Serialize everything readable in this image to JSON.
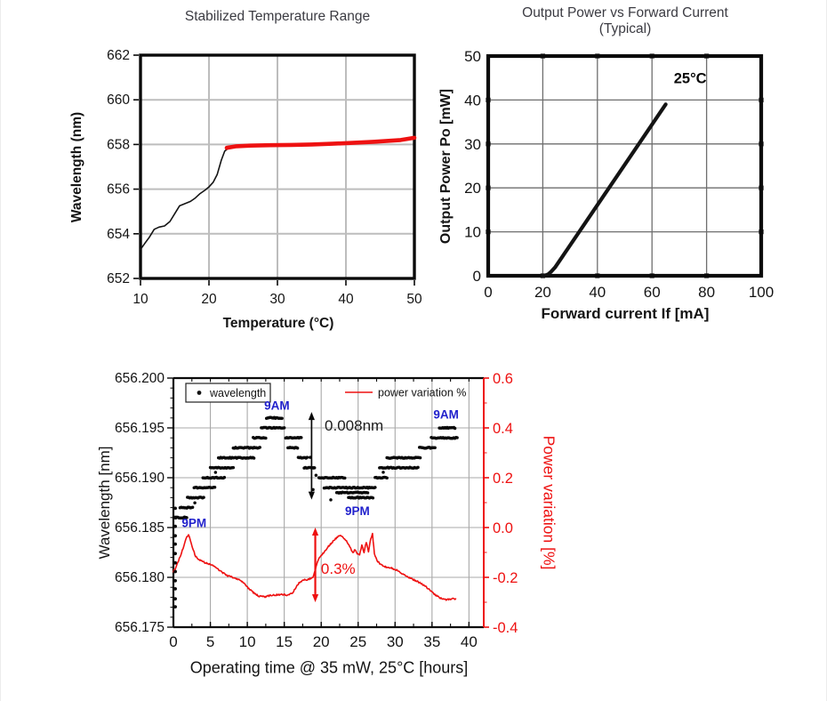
{
  "colors": {
    "red": "#ee1111",
    "blue": "#2222cc",
    "black": "#141414",
    "title_gray": "#3b3b42",
    "grid_light": "#bdbdbd",
    "grid_mid": "#6e6e6e",
    "grid_fine": "#a9a9a9"
  },
  "chart_data": [
    {
      "type": "line",
      "title": "Stabilized Temperature Range",
      "xlabel": "Temperature (°C)",
      "ylabel": "Wavelength (nm)",
      "xlim": [
        10,
        50
      ],
      "ylim": [
        652,
        662
      ],
      "xticks": {
        "values": [
          10,
          20,
          30,
          40,
          50
        ],
        "labels": [
          "10",
          "20",
          "30",
          "40",
          "50"
        ]
      },
      "yticks": {
        "values": [
          652,
          654,
          656,
          658,
          660,
          662
        ],
        "labels": [
          "652",
          "654",
          "656",
          "658",
          "660",
          "662"
        ]
      },
      "series": [
        {
          "name": "unstabilized-wavelength",
          "color": "#141414",
          "width": 1.6,
          "points": [
            [
              10,
              653.3
            ],
            [
              10.7,
              653.6
            ],
            [
              11.3,
              653.85
            ],
            [
              12,
              654.2
            ],
            [
              12.7,
              654.3
            ],
            [
              13.5,
              654.35
            ],
            [
              14.3,
              654.55
            ],
            [
              15,
              654.9
            ],
            [
              15.7,
              655.25
            ],
            [
              16.5,
              655.35
            ],
            [
              17.3,
              655.45
            ],
            [
              18,
              655.6
            ],
            [
              18.7,
              655.8
            ],
            [
              19.4,
              655.95
            ],
            [
              20,
              656.1
            ],
            [
              20.6,
              656.3
            ],
            [
              21.2,
              656.65
            ],
            [
              21.8,
              657.3
            ],
            [
              22.3,
              657.7
            ],
            [
              22.9,
              657.85
            ]
          ]
        },
        {
          "name": "stabilized-wavelength",
          "color": "#ee1111",
          "width": 4.6,
          "points": [
            [
              22.6,
              657.85
            ],
            [
              24,
              657.92
            ],
            [
              26,
              657.95
            ],
            [
              29,
              657.97
            ],
            [
              32,
              657.98
            ],
            [
              35,
              658.0
            ],
            [
              38,
              658.03
            ],
            [
              41,
              658.07
            ],
            [
              44,
              658.12
            ],
            [
              46,
              658.16
            ],
            [
              48,
              658.2
            ],
            [
              50,
              658.3
            ]
          ]
        }
      ]
    },
    {
      "type": "line",
      "title": "Output Power vs Forward Current",
      "subtitle": "(Typical)",
      "xlabel": "Forward current If [mA]",
      "ylabel": "Output Power Po [mW]",
      "xlim": [
        0,
        100
      ],
      "ylim": [
        0,
        50
      ],
      "xticks": {
        "values": [
          0,
          20,
          40,
          60,
          80,
          100
        ],
        "labels": [
          "0",
          "20",
          "40",
          "60",
          "80",
          "100"
        ]
      },
      "yticks": {
        "values": [
          0,
          10,
          20,
          30,
          40,
          50
        ],
        "labels": [
          "0",
          "10",
          "20",
          "30",
          "40",
          "50"
        ]
      },
      "annotation": {
        "label": "25°C",
        "x": 74,
        "y": 45
      },
      "series": [
        {
          "name": "li-curve",
          "color": "#141414",
          "width": 4.2,
          "points": [
            [
              20,
              0
            ],
            [
              21,
              0.1
            ],
            [
              22,
              0.35
            ],
            [
              23,
              0.9
            ],
            [
              24.5,
              1.9
            ],
            [
              65,
              39
            ]
          ]
        }
      ]
    },
    {
      "type": "dual",
      "xlabel": "Operating time @ 35 mW, 25°C [hours]",
      "ylabel_left": "Wavelength [nm]",
      "ylabel_right": "Power variation [%]",
      "xlim": [
        0,
        42
      ],
      "ylim_left": [
        656.175,
        656.2
      ],
      "ylim_right": [
        -0.4,
        0.6
      ],
      "xticks": {
        "values": [
          0,
          5,
          10,
          15,
          20,
          25,
          30,
          35,
          40
        ],
        "labels": [
          "0",
          "5",
          "10",
          "15",
          "20",
          "25",
          "30",
          "35",
          "40"
        ],
        "minor_step": 2.5
      },
      "yticks_left": {
        "values": [
          656.175,
          656.18,
          656.185,
          656.19,
          656.195,
          656.2
        ],
        "labels": [
          "656.175",
          "656.180",
          "656.185",
          "656.190",
          "656.195",
          "656.200"
        ],
        "minor_step": 0.001
      },
      "yticks_right": {
        "values": [
          -0.4,
          -0.2,
          0.0,
          0.2,
          0.4,
          0.6
        ],
        "labels": [
          "-0.4",
          "-0.2",
          "0.0",
          "0.2",
          "0.4",
          "0.6"
        ],
        "minor_step": 0.1
      },
      "legend": [
        {
          "label": "wavelength",
          "marker": "dot",
          "color": "#141414",
          "boxed": true
        },
        {
          "label": "power variation %",
          "marker": "line",
          "color": "#ee1111",
          "boxed": false
        }
      ],
      "annotations": {
        "labels_blue": [
          {
            "text": "9AM",
            "t": 14.0,
            "wl": 656.1972
          },
          {
            "text": "9PM",
            "t": 2.8,
            "wl": 656.1854
          },
          {
            "text": "9PM",
            "t": 24.9,
            "wl": 656.1866
          },
          {
            "text": "9AM",
            "t": 36.9,
            "wl": 656.1963
          }
        ],
        "label_delta": {
          "text": "0.008nm",
          "t": 19.5,
          "wl": 656.1952
        },
        "label_pct": {
          "text": "0.3%",
          "t": 22.3,
          "pct": -0.168
        },
        "arrow_black": {
          "t": 18.7,
          "wl_from": 656.1878,
          "wl_to": 656.1966
        },
        "arrow_red": {
          "t": 19.2,
          "pct_from": -0.3,
          "pct_to": 0.0
        }
      },
      "wavelength_startup": {
        "t": 0.25,
        "from": 656.177,
        "to": 656.1875,
        "step": 0.0009
      },
      "wavelength_steps": [
        [
          0.3,
          1.8,
          656.186
        ],
        [
          0.9,
          2.6,
          656.187
        ],
        [
          1.9,
          4.1,
          656.188
        ],
        [
          2.8,
          5.6,
          656.189
        ],
        [
          4.0,
          6.9,
          656.19
        ],
        [
          5.0,
          8.1,
          656.191
        ],
        [
          6.1,
          10.9,
          656.192
        ],
        [
          8.1,
          11.7,
          656.193
        ],
        [
          10.8,
          12.5,
          656.194
        ],
        [
          11.9,
          15.0,
          656.195
        ],
        [
          12.6,
          14.7,
          656.196
        ],
        [
          15.2,
          17.3,
          656.194
        ],
        [
          15.5,
          16.8,
          656.193
        ],
        [
          16.9,
          18.1,
          656.192
        ],
        [
          17.7,
          19.1,
          656.191
        ],
        [
          19.7,
          23.2,
          656.19
        ],
        [
          20.4,
          27.3,
          656.189
        ],
        [
          22.1,
          26.3,
          656.1885
        ],
        [
          23.7,
          27.0,
          656.188
        ],
        [
          27.3,
          28.9,
          656.19
        ],
        [
          27.9,
          33.1,
          656.191
        ],
        [
          28.9,
          33.4,
          656.192
        ],
        [
          33.3,
          35.4,
          656.193
        ],
        [
          34.9,
          38.4,
          656.194
        ],
        [
          36.0,
          38.1,
          656.195
        ]
      ],
      "wavelength_dots": [
        [
          18.5,
          656.192
        ],
        [
          19.0,
          656.191
        ],
        [
          19.3,
          656.1902
        ],
        [
          18.9,
          656.1888
        ],
        [
          2.9,
          656.1875
        ],
        [
          5.7,
          656.1905
        ],
        [
          21.3,
          656.1878
        ],
        [
          28.4,
          656.1905
        ]
      ],
      "power_curve": {
        "noise": 0.006,
        "points": [
          [
            0,
            -0.175
          ],
          [
            0.3,
            -0.165
          ],
          [
            0.6,
            -0.14
          ],
          [
            1.0,
            -0.11
          ],
          [
            1.4,
            -0.075
          ],
          [
            1.8,
            -0.04
          ],
          [
            2.05,
            -0.028
          ],
          [
            2.3,
            -0.05
          ],
          [
            2.6,
            -0.085
          ],
          [
            3.0,
            -0.115
          ],
          [
            3.5,
            -0.13
          ],
          [
            4.2,
            -0.14
          ],
          [
            5.0,
            -0.148
          ],
          [
            5.8,
            -0.16
          ],
          [
            6.5,
            -0.178
          ],
          [
            7.2,
            -0.192
          ],
          [
            8.0,
            -0.2
          ],
          [
            8.8,
            -0.208
          ],
          [
            9.5,
            -0.222
          ],
          [
            10.2,
            -0.245
          ],
          [
            10.9,
            -0.263
          ],
          [
            11.6,
            -0.276
          ],
          [
            12.4,
            -0.278
          ],
          [
            13.2,
            -0.272
          ],
          [
            14.0,
            -0.27
          ],
          [
            14.8,
            -0.268
          ],
          [
            15.5,
            -0.272
          ],
          [
            16.1,
            -0.262
          ],
          [
            16.6,
            -0.24
          ],
          [
            17.0,
            -0.222
          ],
          [
            17.5,
            -0.212
          ],
          [
            18.2,
            -0.208
          ],
          [
            18.9,
            -0.202
          ],
          [
            19.2,
            -0.17
          ],
          [
            19.5,
            -0.135
          ],
          [
            19.9,
            -0.115
          ],
          [
            20.4,
            -0.098
          ],
          [
            21.0,
            -0.075
          ],
          [
            21.6,
            -0.055
          ],
          [
            22.2,
            -0.038
          ],
          [
            22.6,
            -0.03
          ],
          [
            23.0,
            -0.042
          ],
          [
            23.5,
            -0.058
          ],
          [
            24.0,
            -0.085
          ],
          [
            24.3,
            -0.102
          ],
          [
            24.6,
            -0.088
          ],
          [
            24.9,
            -0.105
          ],
          [
            25.2,
            -0.112
          ],
          [
            25.5,
            -0.07
          ],
          [
            25.8,
            -0.1
          ],
          [
            26.1,
            -0.06
          ],
          [
            26.4,
            -0.095
          ],
          [
            26.7,
            -0.045
          ],
          [
            26.95,
            -0.025
          ],
          [
            27.2,
            -0.105
          ],
          [
            27.5,
            -0.13
          ],
          [
            28.0,
            -0.148
          ],
          [
            28.7,
            -0.158
          ],
          [
            29.5,
            -0.163
          ],
          [
            30.3,
            -0.172
          ],
          [
            31.0,
            -0.185
          ],
          [
            31.7,
            -0.198
          ],
          [
            32.4,
            -0.208
          ],
          [
            33.1,
            -0.218
          ],
          [
            33.8,
            -0.23
          ],
          [
            34.5,
            -0.245
          ],
          [
            35.1,
            -0.262
          ],
          [
            35.7,
            -0.276
          ],
          [
            36.3,
            -0.286
          ],
          [
            37.0,
            -0.29
          ],
          [
            37.6,
            -0.287
          ],
          [
            38.2,
            -0.286
          ]
        ]
      }
    }
  ]
}
